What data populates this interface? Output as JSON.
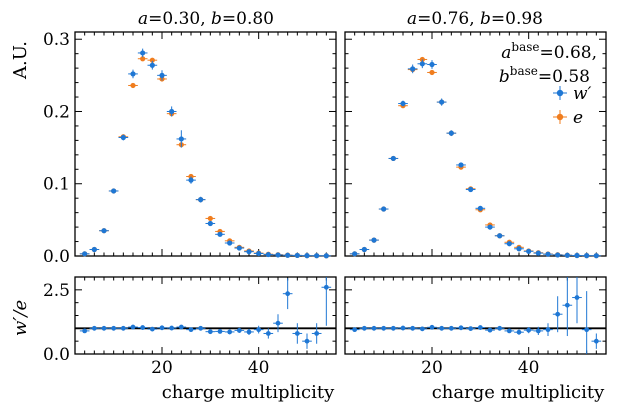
{
  "chart_data": {
    "type": "scatter",
    "ylabel_top": "A.U.",
    "ylabel_ratio": "w′/e",
    "xlabel": "charge multiplicity",
    "xlim": [
      2,
      56
    ],
    "ylim_top": [
      0,
      0.31
    ],
    "ylim_ratio": [
      0,
      3.0
    ],
    "ratio_reference_line": 1.0,
    "xticks": [
      "20",
      "40"
    ],
    "yticks_top": [
      "0.0",
      "0.1",
      "0.2",
      "0.3"
    ],
    "yticks_ratio": [
      "0.0",
      "2.5"
    ],
    "legend": {
      "placement": "right",
      "entries": [
        "w′",
        "e"
      ]
    },
    "colors": {
      "wprime": "#1f77d4",
      "e": "#f07d1e"
    },
    "annotation": {
      "line1": "a",
      "line1_sup": "base",
      "line1_val": "=0.68,",
      "line2": "b",
      "line2_sup": "base",
      "line2_val": "=0.58"
    },
    "panels": [
      {
        "title": "a=0.30, b=0.80",
        "x": [
          4,
          6,
          8,
          10,
          12,
          14,
          16,
          18,
          20,
          22,
          24,
          26,
          28,
          30,
          32,
          34,
          36,
          38,
          40,
          42,
          44,
          46,
          48,
          50,
          52,
          54
        ],
        "wprime": [
          0.003,
          0.009,
          0.035,
          0.09,
          0.164,
          0.252,
          0.281,
          0.264,
          0.25,
          0.2,
          0.162,
          0.105,
          0.078,
          0.045,
          0.03,
          0.018,
          0.011,
          0.006,
          0.0035,
          0.002,
          0.0015,
          0.001,
          0.0008,
          0.0005,
          0.0004,
          0.0003
        ],
        "wprime_err": [
          0.001,
          0.001,
          0.002,
          0.003,
          0.004,
          0.006,
          0.006,
          0.006,
          0.007,
          0.007,
          0.012,
          0.005,
          0.004,
          0.003,
          0.002,
          0.002,
          0.001,
          0.001,
          0.001,
          0.001,
          0.0008,
          0.0006,
          0.0005,
          0.0004,
          0.0004,
          0.0003
        ],
        "e": [
          0.003,
          0.009,
          0.035,
          0.09,
          0.165,
          0.236,
          0.273,
          0.271,
          0.245,
          0.197,
          0.154,
          0.11,
          0.078,
          0.052,
          0.034,
          0.021,
          0.012,
          0.007,
          0.004,
          0.0025,
          0.0018,
          0.0012,
          0.0008,
          0.0005,
          0.0004,
          0.0003
        ],
        "ratio": [
          0.9,
          1.0,
          1.0,
          1.0,
          1.0,
          1.05,
          1.03,
          0.97,
          1.02,
          1.01,
          1.05,
          0.95,
          1.0,
          0.87,
          0.88,
          0.86,
          0.92,
          0.86,
          0.95,
          0.8,
          1.2,
          2.35,
          0.8,
          0.5,
          0.8,
          2.6
        ],
        "ratio_err": [
          0.05,
          0.02,
          0.02,
          0.02,
          0.02,
          0.02,
          0.02,
          0.02,
          0.03,
          0.03,
          0.07,
          0.04,
          0.05,
          0.06,
          0.07,
          0.09,
          0.1,
          0.12,
          0.15,
          0.2,
          0.35,
          0.6,
          0.4,
          0.3,
          0.4,
          1.5
        ]
      },
      {
        "title": "a=0.76, b=0.98",
        "x": [
          4,
          6,
          8,
          10,
          12,
          14,
          16,
          18,
          20,
          22,
          24,
          26,
          28,
          30,
          32,
          34,
          36,
          38,
          40,
          42,
          44,
          46,
          48,
          50,
          52,
          54
        ],
        "wprime": [
          0.003,
          0.009,
          0.022,
          0.065,
          0.135,
          0.211,
          0.259,
          0.266,
          0.265,
          0.213,
          0.17,
          0.126,
          0.092,
          0.066,
          0.04,
          0.028,
          0.017,
          0.01,
          0.0065,
          0.004,
          0.0025,
          0.0015,
          0.001,
          0.0007,
          0.0005,
          0.0004
        ],
        "wprime_err": [
          0.001,
          0.001,
          0.001,
          0.002,
          0.003,
          0.004,
          0.006,
          0.006,
          0.006,
          0.005,
          0.004,
          0.003,
          0.003,
          0.002,
          0.002,
          0.002,
          0.001,
          0.001,
          0.001,
          0.001,
          0.0008,
          0.0006,
          0.0005,
          0.0004,
          0.0004,
          0.0003
        ],
        "e": [
          0.003,
          0.009,
          0.022,
          0.065,
          0.135,
          0.208,
          0.258,
          0.272,
          0.254,
          0.213,
          0.17,
          0.123,
          0.093,
          0.064,
          0.043,
          0.028,
          0.019,
          0.012,
          0.007,
          0.0045,
          0.0028,
          0.0017,
          0.0011,
          0.0007,
          0.0005,
          0.0004
        ],
        "ratio": [
          0.95,
          1.0,
          1.0,
          1.0,
          1.0,
          1.01,
          1.0,
          0.98,
          1.04,
          1.0,
          1.0,
          1.02,
          0.99,
          1.03,
          0.93,
          1.0,
          0.9,
          0.85,
          0.93,
          0.9,
          0.95,
          1.55,
          1.9,
          2.2,
          0.95,
          0.5
        ],
        "ratio_err": [
          0.04,
          0.02,
          0.02,
          0.02,
          0.02,
          0.02,
          0.02,
          0.02,
          0.02,
          0.02,
          0.02,
          0.03,
          0.03,
          0.04,
          0.05,
          0.06,
          0.08,
          0.1,
          0.12,
          0.16,
          0.25,
          0.7,
          1.2,
          1.0,
          1.5,
          0.3
        ]
      }
    ]
  }
}
